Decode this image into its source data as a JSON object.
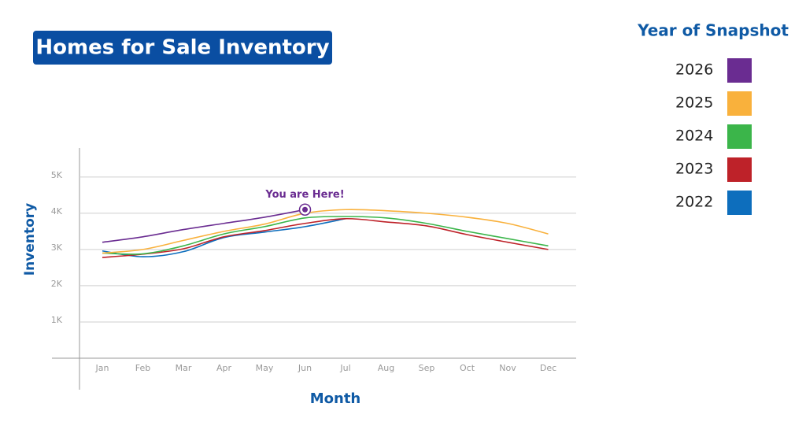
{
  "chart_data": {
    "type": "line",
    "title": "Homes for Sale Inventory",
    "x_label": "Month",
    "y_label": "Inventory",
    "legend_title": "Year of Snapshot",
    "annotation": "You are Here!",
    "categories": [
      "Jan",
      "Feb",
      "Mar",
      "Apr",
      "May",
      "Jun",
      "Jul",
      "Aug",
      "Sep",
      "Oct",
      "Nov",
      "Dec"
    ],
    "series": [
      {
        "name": "2026",
        "color": "#6a2c91",
        "values": [
          3200,
          3350,
          3550,
          3720,
          3890,
          4100,
          null,
          null,
          null,
          null,
          null,
          null
        ]
      },
      {
        "name": "2025",
        "color": "#f9b13c",
        "values": [
          2900,
          3000,
          3250,
          3500,
          3700,
          4000,
          4100,
          4070,
          4000,
          3890,
          3720,
          3430
        ]
      },
      {
        "name": "2024",
        "color": "#3bb54a",
        "values": [
          2900,
          2880,
          3100,
          3430,
          3630,
          3870,
          3910,
          3870,
          3720,
          3500,
          3300,
          3100
        ]
      },
      {
        "name": "2023",
        "color": "#be2229",
        "values": [
          2780,
          2870,
          3020,
          3350,
          3520,
          3720,
          3850,
          3760,
          3650,
          3410,
          3200,
          3000
        ]
      },
      {
        "name": "2022",
        "color": "#0d6ebd",
        "values": [
          2960,
          2800,
          2940,
          3330,
          3480,
          3630,
          3850,
          null,
          null,
          null,
          null,
          null
        ]
      }
    ],
    "ylim": [
      0,
      5800
    ],
    "yticks": [
      {
        "value": 1000,
        "label": "1K"
      },
      {
        "value": 2000,
        "label": "2K"
      },
      {
        "value": 3000,
        "label": "3K"
      },
      {
        "value": 4000,
        "label": "4K"
      },
      {
        "value": 5000,
        "label": "5K"
      }
    ],
    "grid": true
  }
}
